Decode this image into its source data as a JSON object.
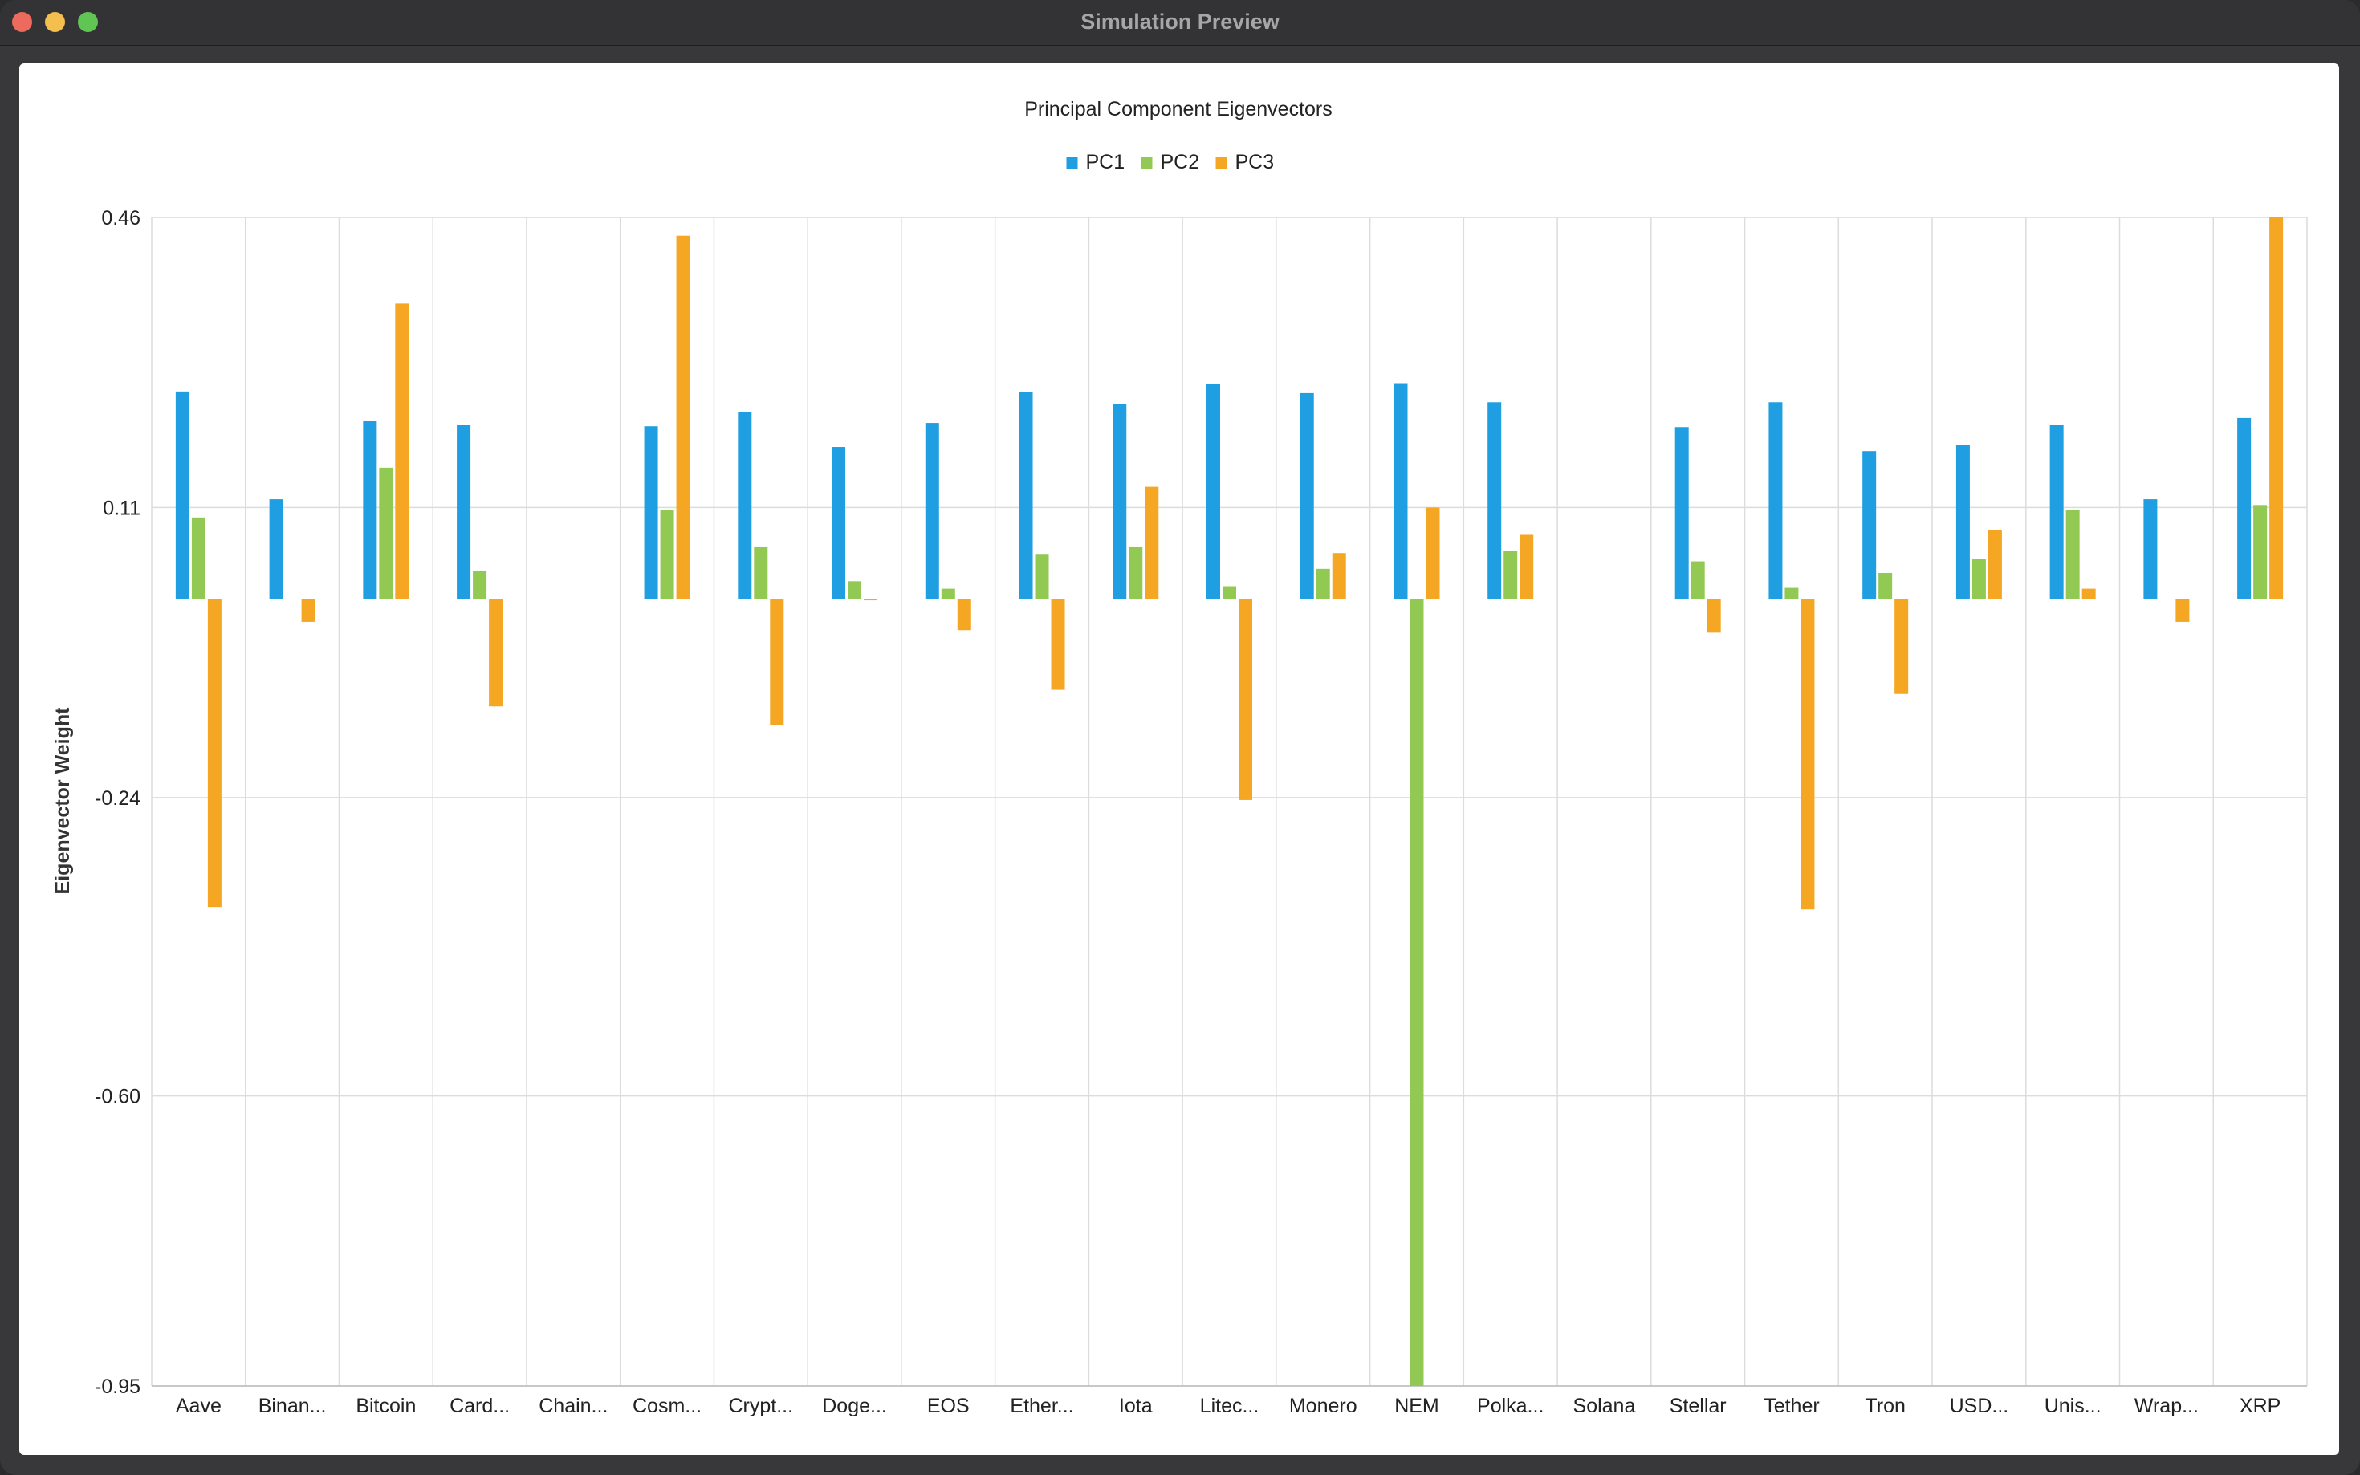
{
  "window": {
    "title": "Simulation Preview"
  },
  "chart_data": {
    "type": "bar",
    "title": "Principal Component Eigenvectors",
    "ylabel": "Eigenvector Weight",
    "xlabel": "",
    "ylim": [
      -0.95,
      0.46
    ],
    "yticks": [
      "0.46",
      "0.11",
      "-0.24",
      "-0.60",
      "-0.95"
    ],
    "ytick_values": [
      0.46,
      0.11,
      -0.24,
      -0.6,
      -0.95
    ],
    "grid": true,
    "legend_position": "top-center",
    "categories": [
      "Aave",
      "Binan...",
      "Bitcoin",
      "Card...",
      "Chain...",
      "Cosm...",
      "Crypt...",
      "Doge...",
      "EOS",
      "Ether...",
      "Iota",
      "Litec...",
      "Monero",
      "NEM",
      "Polka...",
      "Solana",
      "Stellar",
      "Tether",
      "Tron",
      "USD...",
      "Unis...",
      "Wrap...",
      "XRP"
    ],
    "series": [
      {
        "name": "PC1",
        "color": "#1f9ee1",
        "values": [
          0.25,
          0.12,
          0.215,
          0.21,
          0.0,
          0.208,
          0.225,
          0.183,
          0.212,
          0.249,
          0.235,
          0.259,
          0.248,
          0.26,
          0.237,
          0.0,
          0.207,
          0.237,
          0.178,
          0.185,
          0.21,
          0.12,
          0.218
        ]
      },
      {
        "name": "PC2",
        "color": "#92c953",
        "values": [
          0.098,
          0.0,
          0.158,
          0.033,
          0.0,
          0.107,
          0.063,
          0.021,
          0.012,
          0.054,
          0.063,
          0.015,
          0.036,
          -0.95,
          0.058,
          0.0,
          0.045,
          0.013,
          0.031,
          0.048,
          0.107,
          0.0,
          0.113
        ]
      },
      {
        "name": "PC3",
        "color": "#f5a623",
        "values": [
          -0.372,
          -0.028,
          0.356,
          -0.13,
          0.0,
          0.438,
          -0.153,
          -0.002,
          -0.038,
          -0.11,
          0.135,
          -0.243,
          0.055,
          0.11,
          0.077,
          0.0,
          -0.041,
          -0.375,
          -0.115,
          0.083,
          0.012,
          -0.028,
          0.46
        ]
      }
    ]
  }
}
